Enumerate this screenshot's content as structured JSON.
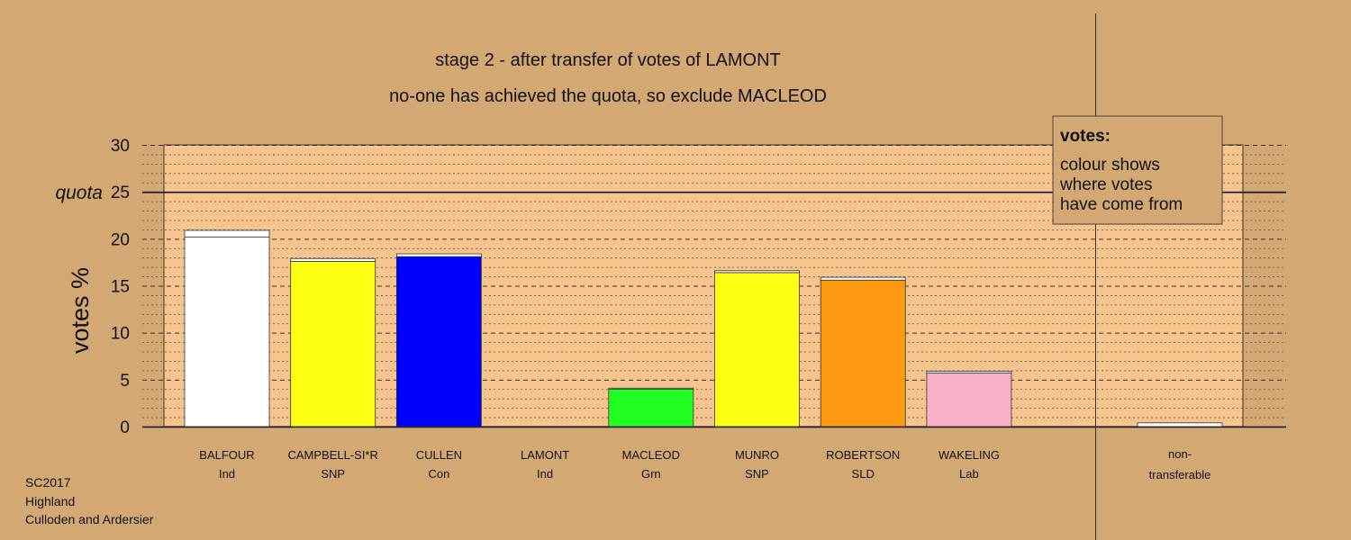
{
  "titles": {
    "line1": "stage 2 - after transfer of votes of LAMONT",
    "line2": "no-one has achieved the quota, so exclude MACLEOD"
  },
  "legend": {
    "title": "votes:",
    "lines": [
      "colour shows",
      "where votes",
      "have come from"
    ]
  },
  "footer": [
    "SC2017",
    "Highland",
    "Culloden and Ardersier"
  ],
  "colors": {
    "background": "#d4a873",
    "plot_background": "#f8c48e",
    "Ind": "#ffffff",
    "SNP": "#ffff14",
    "Con": "#0000ff",
    "Grn": "#22ff22",
    "SLD": "#ff9911",
    "Lab": "#f9b0c6",
    "non-transferable": "#ffffff"
  },
  "chart_data": {
    "type": "bar",
    "ylabel": "votes %",
    "ylim": [
      0,
      30
    ],
    "yticks": [
      0,
      5,
      10,
      15,
      20,
      25,
      30
    ],
    "quota": 25,
    "quota_label": "quota",
    "grid": true,
    "legend_position": "top-right",
    "candidates": [
      {
        "name": "BALFOUR",
        "party": "Ind",
        "first": 20.2,
        "transfer": 0.7
      },
      {
        "name": "CAMPBELL-SI*R",
        "party": "SNP",
        "first": 17.6,
        "transfer": 0.3
      },
      {
        "name": "CULLEN",
        "party": "Con",
        "first": 18.1,
        "transfer": 0.3
      },
      {
        "name": "LAMONT",
        "party": "Ind",
        "first": 0,
        "transfer": 0
      },
      {
        "name": "MACLEOD",
        "party": "Grn",
        "first": 4.0,
        "transfer": 0.1
      },
      {
        "name": "MUNRO",
        "party": "SNP",
        "first": 16.4,
        "transfer": 0.2
      },
      {
        "name": "ROBERTSON",
        "party": "SLD",
        "first": 15.6,
        "transfer": 0.3
      },
      {
        "name": "WAKELING",
        "party": "Lab",
        "first": 5.7,
        "transfer": 0.2
      }
    ],
    "nontransferable": {
      "line1": "non-",
      "line2": "transferable",
      "value": 0.4
    }
  }
}
